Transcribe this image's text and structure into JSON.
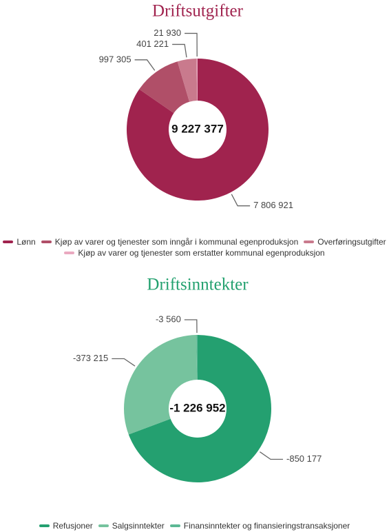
{
  "chart_data": [
    {
      "type": "donut",
      "title": "Driftsutgifter",
      "title_color": "#a0234e",
      "center_label": "9 227 377",
      "categories": [
        "Lønn",
        "Kjøp av varer og tjenester som inngår i kommunal egenproduksjon",
        "Overføringsutgifter",
        "Kjøp av varer og tjenester som erstatter kommunal egenproduksjon"
      ],
      "values": [
        7806921,
        997305,
        401221,
        21930
      ],
      "value_labels": [
        "7 806 921",
        "997 305",
        "401 221",
        "21 930"
      ],
      "colors": [
        "#a0234e",
        "#b04f68",
        "#c97a8d",
        "#eaa9c0"
      ]
    },
    {
      "type": "donut",
      "title": "Driftsinntekter",
      "title_color": "#22a06e",
      "center_label": "-1 226 952",
      "categories": [
        "Refusjoner",
        "Salgsinntekter",
        "Finansinntekter og finansieringstransaksjoner"
      ],
      "values": [
        -850177,
        -373215,
        -3560
      ],
      "value_labels": [
        "-850 177",
        "-373 215",
        "-3 560"
      ],
      "colors": [
        "#24a070",
        "#76c39e",
        "#5cb894"
      ]
    }
  ]
}
